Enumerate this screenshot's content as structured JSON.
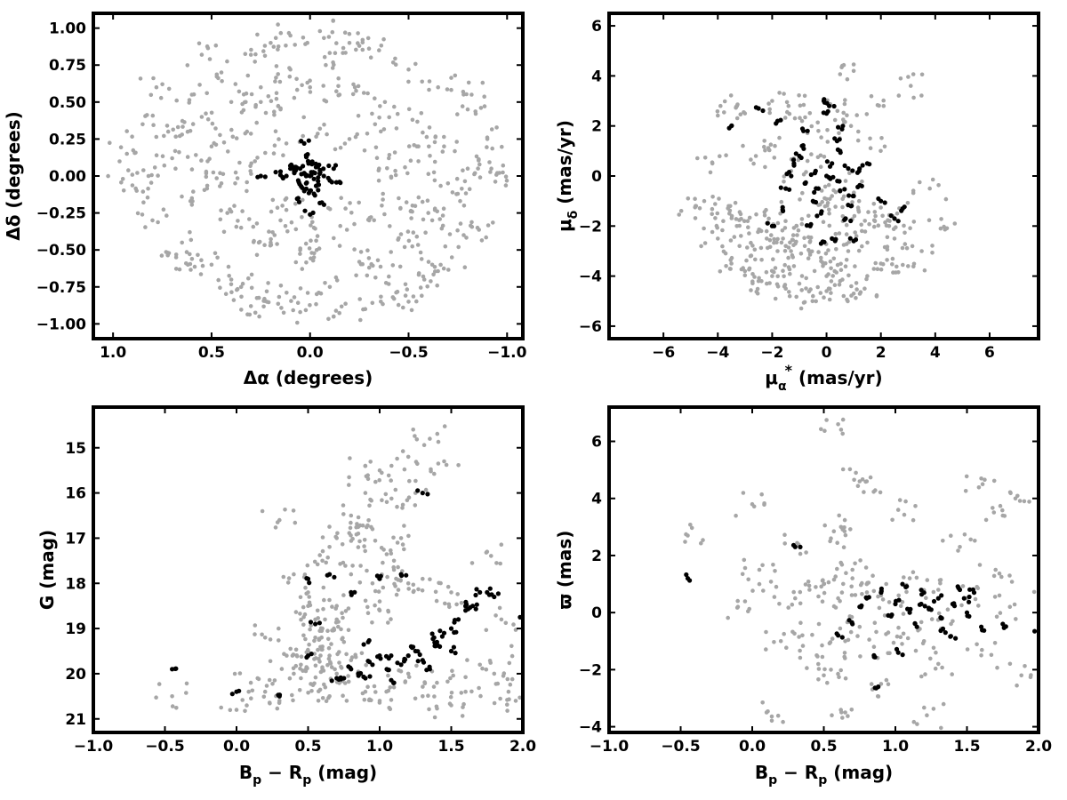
{
  "colors": {
    "background_stars": "#a6a6a6",
    "member_stars": "#000000",
    "frame": "#000000"
  },
  "chart_data": [
    {
      "id": "sky",
      "type": "scatter",
      "xlabel": [
        "Δα (degrees)"
      ],
      "ylabel": [
        "Δδ (degrees)"
      ],
      "xlim": [
        1.1,
        -1.08
      ],
      "ylim": [
        -1.1,
        1.1
      ],
      "x_reversed": true,
      "xticks": [
        1.0,
        0.5,
        0.0,
        -0.5,
        -1.0
      ],
      "xtick_labels": [
        "1.0",
        "0.5",
        "0.0",
        "−0.5",
        "−1.0"
      ],
      "yticks": [
        -1.0,
        -0.75,
        -0.5,
        -0.25,
        0.0,
        0.25,
        0.5,
        0.75,
        1.0
      ],
      "ytick_labels": [
        "−1.00",
        "−0.75",
        "−0.50",
        "−0.25",
        "0.00",
        "0.25",
        "0.50",
        "0.75",
        "1.00"
      ],
      "series": [
        {
          "role": "field",
          "color": "#a6a6a6",
          "x": [
            0.93,
            0.88,
            0.72,
            0.6,
            0.45,
            0.3,
            0.2,
            0.1,
            -0.05,
            -0.2,
            -0.35,
            -0.5,
            -0.65,
            -0.8,
            -0.9,
            -0.95,
            0.8,
            0.65,
            0.5,
            0.35,
            0.22,
            0.05,
            -0.12,
            -0.28,
            -0.42,
            -0.58,
            -0.72,
            -0.85,
            0.7,
            0.55,
            0.4,
            0.25,
            0.1,
            -0.08,
            -0.22,
            -0.38,
            -0.52,
            -0.68,
            -0.8,
            0.85,
            0.6,
            0.42,
            0.18,
            -0.02,
            -0.3,
            -0.48,
            -0.62,
            -0.75,
            0.5,
            0.32,
            0.15,
            -0.15,
            -0.33,
            -0.55,
            -0.7,
            0.62,
            0.4,
            0.22,
            0.08,
            -0.1,
            -0.25,
            -0.45,
            -0.6,
            0.45,
            0.28,
            0.12,
            -0.05,
            -0.2,
            -0.4,
            -0.52,
            0.35,
            0.2,
            0.05,
            -0.12,
            -0.3,
            -0.45,
            0.78,
            0.68,
            -0.82,
            -0.62,
            0.95,
            -0.92,
            0.55,
            -0.5,
            0.3,
            -0.25,
            0.15,
            -0.18,
            0.82,
            -0.78,
            0.52,
            0.38,
            -0.35,
            -0.55,
            0.25,
            0.0,
            -0.02,
            0.12,
            -0.4,
            0.65
          ],
          "y": [
            0.15,
            -0.1,
            0.3,
            0.55,
            0.7,
            0.82,
            0.9,
            0.95,
            0.98,
            0.9,
            0.85,
            0.72,
            0.6,
            0.45,
            0.25,
            0.02,
            -0.3,
            -0.45,
            -0.6,
            -0.75,
            -0.85,
            -0.92,
            -0.95,
            -0.9,
            -0.82,
            -0.7,
            -0.55,
            -0.35,
            0.12,
            0.4,
            0.5,
            0.6,
            0.72,
            0.75,
            0.62,
            0.5,
            0.38,
            0.2,
            0.05,
            0.35,
            -0.15,
            -0.25,
            -0.4,
            -0.55,
            -0.62,
            -0.48,
            -0.3,
            -0.12,
            0.2,
            0.3,
            0.45,
            0.55,
            0.35,
            0.1,
            -0.05,
            -0.6,
            -0.7,
            -0.78,
            -0.82,
            -0.75,
            -0.58,
            -0.42,
            -0.25,
            -0.05,
            0.1,
            0.22,
            0.32,
            0.25,
            0.12,
            -0.2,
            -0.35,
            -0.45,
            -0.5,
            -0.42,
            -0.3,
            -0.15,
            0.6,
            -0.55,
            0.55,
            -0.6,
            -0.02,
            0.05,
            0.82,
            -0.85,
            -0.88,
            0.88,
            -0.3,
            -0.22,
            0.0,
            -0.4,
            0.1,
            -0.05,
            0.05,
            0.2,
            0.5,
            0.6,
            -0.35,
            -0.15,
            -0.68,
            0.28
          ]
        },
        {
          "role": "members",
          "color": "#000000",
          "x": [
            0.0,
            0.03,
            -0.02,
            0.05,
            -0.05,
            0.02,
            -0.01,
            0.06,
            -0.04,
            0.01,
            0.08,
            -0.07,
            0.0,
            0.04,
            -0.03,
            0.1,
            -0.1,
            0.02,
            -0.02,
            0.03,
            0.12,
            -0.12,
            0.15,
            0.06,
            -0.06,
            0.0,
            0.25,
            0.02,
            -0.15,
            0.08
          ],
          "y": [
            0.0,
            0.02,
            -0.02,
            0.05,
            0.04,
            -0.05,
            0.08,
            -0.03,
            -0.06,
            0.1,
            0.02,
            0.0,
            -0.1,
            -0.08,
            0.06,
            0.05,
            -0.03,
            0.14,
            -0.12,
            0.22,
            0.0,
            0.05,
            0.03,
            -0.15,
            -0.18,
            -0.26,
            0.0,
            0.0,
            -0.04,
            0.06
          ]
        }
      ]
    },
    {
      "id": "pm",
      "type": "scatter",
      "xlabel": [
        "μ",
        "α",
        "*",
        " (mas/yr)"
      ],
      "ylabel": [
        "μ",
        "δ",
        " (mas/yr)"
      ],
      "xlim": [
        -8.0,
        7.8
      ],
      "ylim": [
        -6.5,
        6.5
      ],
      "xticks": [
        -6,
        -4,
        -2,
        0,
        2,
        4,
        6
      ],
      "xtick_labels": [
        "−6",
        "−4",
        "−2",
        "0",
        "2",
        "4",
        "6"
      ],
      "yticks": [
        -6,
        -4,
        -2,
        0,
        2,
        4,
        6
      ],
      "ytick_labels": [
        "−6",
        "−4",
        "−2",
        "0",
        "2",
        "4",
        "6"
      ],
      "series": [
        {
          "role": "field",
          "color": "#a6a6a6",
          "x": [
            -4.5,
            -4.0,
            -3.5,
            -3.0,
            -2.5,
            -2.0,
            -1.5,
            -1.0,
            -0.5,
            0.0,
            0.5,
            1.0,
            1.5,
            2.0,
            2.5,
            3.0,
            3.5,
            -4.2,
            -3.8,
            -3.2,
            -2.8,
            -2.2,
            -1.8,
            -1.2,
            -0.8,
            -0.2,
            0.3,
            0.8,
            1.3,
            1.8,
            2.3,
            -3.6,
            -2.9,
            -2.4,
            -1.6,
            -1.1,
            -0.6,
            0.1,
            0.6,
            1.1,
            -4.8,
            -3.0,
            -2.0,
            -1.4,
            -0.9,
            -0.3,
            0.4,
            0.9,
            1.6,
            2.1,
            -2.6,
            -1.9,
            -1.3,
            -0.7,
            0.2,
            0.7,
            1.2,
            -3.3,
            -1.7,
            -0.4,
            1.4,
            3.8,
            4.2,
            3.1,
            -3.9,
            1.0,
            0.0,
            -2.2,
            2.6,
            -1.5
          ],
          "y": [
            -1.0,
            -2.5,
            -3.5,
            -3.8,
            -4.2,
            -4.0,
            -4.5,
            -4.3,
            -4.8,
            -4.6,
            -4.2,
            -4.7,
            -4.0,
            -3.5,
            -2.5,
            -3.6,
            -3.0,
            0.5,
            -1.8,
            -2.8,
            -3.2,
            -2.5,
            -3.0,
            -3.6,
            -2.8,
            -3.4,
            -3.8,
            -3.0,
            -2.2,
            -1.6,
            -2.0,
            -1.2,
            -1.8,
            -2.2,
            -2.5,
            -2.0,
            -2.6,
            -1.5,
            -1.8,
            -2.4,
            -1.2,
            2.5,
            3.0,
            2.8,
            2.2,
            1.8,
            2.6,
            2.0,
            1.5,
            2.8,
            0.8,
            1.2,
            0.2,
            0.6,
            -0.8,
            -0.2,
            -1.0,
            -2.0,
            -1.5,
            -0.5,
            -4.5,
            -0.5,
            -2.1,
            3.6,
            2.8,
            4.2,
            -4.0,
            -4.3,
            -1.5,
            -2.8
          ]
        },
        {
          "role": "members",
          "color": "#000000",
          "x": [
            0.0,
            0.2,
            -0.3,
            0.5,
            -0.5,
            0.8,
            -0.8,
            1.0,
            -1.0,
            0.3,
            -0.2,
            0.6,
            -0.6,
            1.2,
            -1.2,
            0.1,
            -0.1,
            0.4,
            -0.4,
            0.9,
            -0.9,
            1.5,
            -1.5,
            2.0,
            -2.0,
            0.7,
            -0.7,
            1.3,
            -1.3,
            0.0,
            -2.5,
            -3.5,
            2.5,
            2.8,
            -1.8,
            0.2,
            -0.2,
            0.5,
            -1.6,
            1.0
          ],
          "y": [
            0.0,
            0.5,
            -0.5,
            1.0,
            -1.0,
            0.3,
            -0.3,
            -0.8,
            0.8,
            1.5,
            -1.5,
            2.0,
            -2.0,
            0.2,
            0.5,
            2.8,
            3.0,
            -0.2,
            0.2,
            -1.2,
            1.2,
            0.5,
            -0.5,
            -1.0,
            -2.0,
            -1.7,
            1.8,
            -0.4,
            0.0,
            2.5,
            2.7,
            2.0,
            -1.7,
            -1.3,
            2.2,
            -2.5,
            -2.7,
            -0.6,
            -1.4,
            -2.6
          ]
        }
      ]
    },
    {
      "id": "cmd",
      "type": "scatter",
      "xlabel": [
        "B",
        "p",
        " − R",
        "p",
        " (mag)"
      ],
      "ylabel": [
        "G (mag)"
      ],
      "xlim": [
        -1.0,
        2.0
      ],
      "ylim": [
        21.3,
        14.1
      ],
      "y_reversed": true,
      "xticks": [
        -1.0,
        -0.5,
        0.0,
        0.5,
        1.0,
        1.5,
        2.0
      ],
      "xtick_labels": [
        "−1.0",
        "−0.5",
        "0.0",
        "0.5",
        "1.0",
        "1.5",
        "2.0"
      ],
      "yticks": [
        15,
        16,
        17,
        18,
        19,
        20,
        21
      ],
      "ytick_labels": [
        "15",
        "16",
        "17",
        "18",
        "19",
        "20",
        "21"
      ],
      "series": [
        {
          "role": "field",
          "color": "#a6a6a6",
          "x": [
            -0.45,
            0.0,
            0.1,
            0.2,
            0.3,
            0.4,
            0.45,
            0.5,
            0.55,
            0.6,
            0.62,
            0.65,
            0.68,
            0.7,
            0.72,
            0.75,
            0.5,
            0.55,
            0.6,
            0.65,
            0.7,
            0.8,
            0.9,
            1.0,
            1.1,
            1.2,
            1.3,
            1.4,
            1.5,
            1.6,
            1.7,
            1.8,
            1.9,
            2.0,
            0.4,
            0.5,
            0.6,
            0.7,
            0.8,
            0.9,
            1.0,
            1.1,
            1.2,
            0.85,
            0.95,
            1.05,
            0.9,
            1.0,
            0.8,
            1.2,
            1.25,
            1.35,
            1.45,
            1.1,
            0.3,
            0.7,
            0.6,
            0.95,
            1.15,
            0.85,
            1.0,
            1.3,
            1.5,
            1.75,
            1.85,
            0.2,
            0.35,
            0.45,
            1.95,
            1.6
          ],
          "y": [
            20.5,
            20.8,
            20.2,
            20.4,
            20.6,
            20.0,
            19.8,
            19.5,
            19.2,
            19.9,
            20.3,
            19.6,
            19.0,
            18.8,
            20.1,
            19.3,
            18.5,
            18.8,
            19.4,
            20.5,
            20.0,
            19.7,
            20.4,
            20.6,
            20.3,
            20.0,
            20.5,
            20.2,
            20.7,
            20.4,
            19.8,
            20.0,
            20.4,
            19.5,
            17.8,
            18.2,
            17.5,
            17.0,
            16.5,
            16.0,
            15.5,
            17.5,
            18.0,
            17.2,
            16.8,
            16.2,
            15.4,
            18.6,
            17.8,
            15.2,
            16.0,
            14.8,
            15.3,
            17.7,
            16.6,
            18.5,
            19.0,
            18.0,
            17.0,
            16.9,
            18.4,
            17.9,
            18.2,
            17.3,
            18.8,
            19.2,
            19.6,
            20.1,
            20.6,
            18.5
          ],
          "xspread": true
        },
        {
          "role": "members",
          "color": "#000000",
          "x": [
            -0.45,
            0.0,
            0.3,
            0.5,
            0.7,
            0.75,
            0.8,
            0.85,
            0.9,
            0.95,
            1.0,
            1.05,
            1.1,
            1.15,
            1.2,
            1.25,
            1.3,
            1.35,
            1.4,
            1.45,
            1.5,
            1.55,
            1.6,
            1.65,
            1.7,
            1.75,
            1.8,
            2.0,
            0.55,
            0.65,
            1.0,
            1.15,
            1.3,
            1.5,
            1.6,
            1.38,
            1.42,
            1.22,
            1.08,
            0.92,
            0.5,
            0.8
          ],
          "y": [
            19.9,
            20.4,
            20.5,
            19.6,
            20.1,
            20.1,
            19.9,
            20.0,
            20.1,
            19.8,
            19.6,
            19.9,
            20.2,
            19.8,
            19.6,
            19.5,
            19.7,
            19.9,
            19.3,
            19.1,
            19.0,
            18.8,
            18.6,
            18.5,
            18.2,
            18.2,
            18.3,
            18.8,
            18.9,
            17.8,
            17.9,
            17.8,
            16.0,
            19.5,
            18.5,
            19.2,
            19.4,
            19.4,
            19.6,
            19.3,
            17.9,
            18.2
          ]
        }
      ]
    },
    {
      "id": "parallax",
      "type": "scatter",
      "xlabel": [
        "B",
        "p",
        " − R",
        "p",
        " (mag)"
      ],
      "ylabel": [
        "ϖ (mas)"
      ],
      "xlim": [
        -1.0,
        2.0
      ],
      "ylim": [
        -4.2,
        7.2
      ],
      "xticks": [
        -1.0,
        -0.5,
        0.0,
        0.5,
        1.0,
        1.5,
        2.0
      ],
      "xtick_labels": [
        "−1.0",
        "−0.5",
        "0.0",
        "0.5",
        "1.0",
        "1.5",
        "2.0"
      ],
      "yticks": [
        -4,
        -2,
        0,
        2,
        4,
        6
      ],
      "ytick_labels": [
        "−4",
        "−2",
        "0",
        "2",
        "4",
        "6"
      ],
      "series": [
        {
          "role": "field",
          "color": "#a6a6a6",
          "x": [
            -0.45,
            -0.1,
            0.0,
            0.05,
            0.1,
            0.2,
            0.3,
            0.35,
            0.4,
            0.45,
            0.5,
            0.55,
            0.6,
            0.65,
            0.7,
            0.75,
            0.8,
            0.85,
            0.9,
            0.95,
            1.0,
            1.1,
            1.2,
            1.3,
            1.4,
            1.5,
            1.6,
            1.7,
            1.8,
            1.9,
            2.0,
            0.6,
            0.62,
            0.75,
            0.8,
            1.02,
            1.22,
            1.6,
            1.75,
            1.88,
            0.05,
            0.3,
            0.55,
            0.9,
            1.3,
            0.65,
            0.7,
            1.45,
            0.5,
            1.15
          ],
          "y": [
            2.7,
            0.2,
            3.8,
            1.5,
            -3.5,
            -1.0,
            0.5,
            -0.8,
            0.8,
            -1.5,
            1.0,
            -2.0,
            0.5,
            -1.0,
            1.5,
            -0.5,
            1.0,
            -1.2,
            0.6,
            -0.7,
            0.3,
            1.2,
            -1.0,
            0.8,
            -0.3,
            0.5,
            -1.5,
            1.5,
            0.2,
            3.9,
            0.5,
            6.6,
            3.0,
            4.6,
            4.6,
            3.6,
            -3.6,
            4.7,
            3.4,
            -2.2,
            1.0,
            2.3,
            2.6,
            -2.5,
            -1.8,
            -3.5,
            1.2,
            2.3,
            -2.2,
            -0.5
          ],
          "xspread": true
        },
        {
          "role": "members",
          "color": "#000000",
          "x": [
            -0.45,
            0.3,
            0.6,
            0.7,
            0.8,
            0.85,
            0.9,
            0.95,
            1.0,
            1.05,
            1.1,
            1.15,
            1.2,
            1.25,
            1.3,
            1.35,
            1.4,
            1.45,
            1.5,
            1.55,
            1.6,
            1.75,
            2.0,
            0.88,
            1.02,
            1.18,
            1.32,
            1.42,
            0.75,
            1.48
          ],
          "y": [
            1.2,
            2.3,
            -0.8,
            -0.4,
            0.5,
            -1.5,
            0.7,
            -0.1,
            0.3,
            1.0,
            0.0,
            -0.5,
            0.7,
            0.1,
            0.5,
            -0.7,
            0.3,
            0.8,
            0.0,
            0.7,
            -0.5,
            -0.4,
            -0.7,
            -2.6,
            -1.4,
            0.3,
            -0.2,
            -0.9,
            0.2,
            0.5
          ]
        }
      ]
    }
  ]
}
